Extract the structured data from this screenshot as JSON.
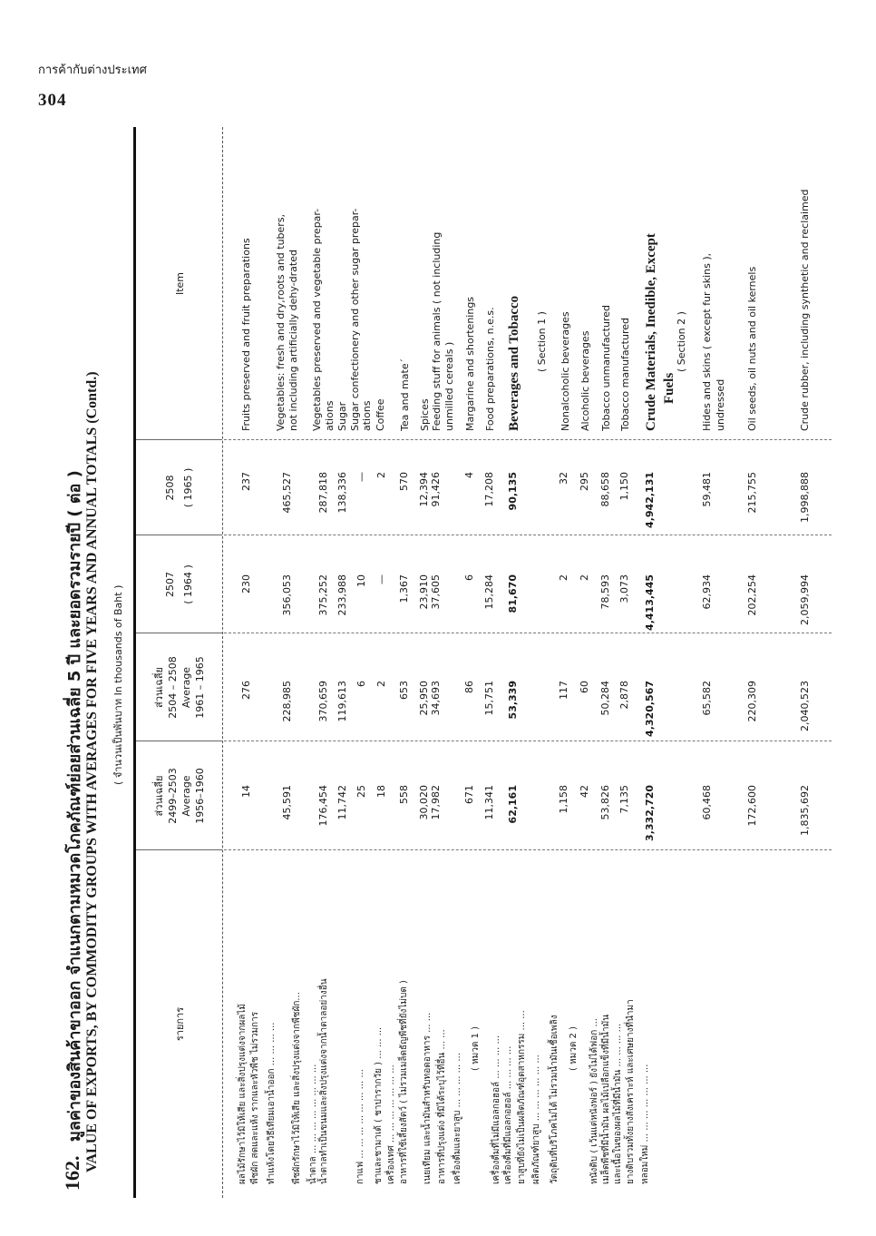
{
  "running_head": "การค้ากับต่างประเทศ",
  "page_number": "304",
  "table": {
    "number": "162.",
    "title_thai": "มูลค่าของสินค้าขาออก  จำแนกตามหมวดโภคภัณฑ์ย่อยส่วนเฉลี่ย 5 ปี  และยอดรวมรายปี  ( ต่อ )",
    "title_english": "VALUE OF EXPORTS, BY COMMODITY GROUPS WITH AVERAGES FOR FIVE YEARS AND ANNUAL TOTALS (Contd.)",
    "unit": "( จำนวนเป็นพันบาท   In thousands of Baht )",
    "headers": {
      "item_thai": "รายการ",
      "col1": [
        "ส่วนเฉลี่ย",
        "2499–2503",
        "Average",
        "1956–1960"
      ],
      "col2": [
        "ส่วนเฉลี่ย",
        "2504 – 2508",
        "Average",
        "1961 – 1965"
      ],
      "col3": [
        "2507",
        "( 1964 )"
      ],
      "col4": [
        "2508",
        "( 1965 )"
      ],
      "item_english": "Item"
    },
    "rows": [
      {
        "thai": [
          "ผลไม้รักษาไว้มิให้เสีย  และสิ่งปรุงแต่งจากผลไม้"
        ],
        "item": [
          "Fruits preserved and fruit preparations"
        ],
        "values": [
          "14",
          "276",
          "230",
          "237"
        ]
      },
      {
        "thai": [
          "พืชผัก  สดและแห้ง  รากและหัวพืช  ไม่รวมการ",
          "ทำแห้งโดยวิธีเทียมเอาน้ำออก ...  ...  ...  ..."
        ],
        "item": [
          "Vegetables: fresh and dry,roots and tubers,",
          "not including artificially dehy-drated"
        ],
        "values": [
          "45,591",
          "228,985",
          "356,053",
          "465,527"
        ]
      },
      {
        "thai": [
          "พืชผักรักษาไว้มิให้เสีย  และสิ่งปรุงแต่งจากพืชผัก..."
        ],
        "item": [
          "Vegetables preserved and vegetable prepar-",
          "ations"
        ],
        "values": [
          "176,454",
          "370,659",
          "375,252",
          "287,818"
        ]
      },
      {
        "thai": [
          "น้ำตาล ...  ...  ...  ...  ...  ...  ...  ..."
        ],
        "item": [
          "Sugar"
        ],
        "values": [
          "11,742",
          "119,613",
          "233,988",
          "138,336"
        ]
      },
      {
        "thai": [
          "น้ำตาลทำเป็นขนมและสิ่งปรุงแต่งจากน้ำตาลอย่างอื่น"
        ],
        "item": [
          "Sugar confectionery and other sugar prepar-",
          "ations"
        ],
        "values": [
          "25",
          "6",
          "10",
          "—"
        ]
      },
      {
        "thai": [
          "กาแฟ  ...  ...  ...  ...  ...  ...  ...  ..."
        ],
        "item": [
          "Coffee"
        ],
        "values": [
          "18",
          "2",
          "—",
          "2"
        ]
      },
      {
        "thai": [
          "ชาและชามาเต้  ( ชาปารากวัย )  ...  ...  ..."
        ],
        "item": [
          "Tea  and  mate´"
        ],
        "values": [
          "558",
          "653",
          "1,367",
          "570"
        ]
      },
      {
        "thai": [
          "เครื่องเทศ ...  ...  ...  ...  ...  ...  ..."
        ],
        "item": [
          "Spices"
        ],
        "values": [
          "30,020",
          "25,950",
          "23,910",
          "12,394"
        ]
      },
      {
        "thai": [
          "อาหารที่ใช้เลี้ยงสัตว์  ( ไม่รวมเมล็ดธัญพืชที่ยังไม่บด )"
        ],
        "item": [
          "Feeding   stuff   for   animals   ( not including",
          "unmilled cereals )"
        ],
        "values": [
          "17,982",
          "34,693",
          "37,605",
          "91,426"
        ]
      },
      {
        "thai": [
          "เนยเทียม  และน้ำมันสำหรับทอดอาหาร ...  ..."
        ],
        "item": [
          "Margarine and shortenings"
        ],
        "values": [
          "671",
          "86",
          "6",
          "4"
        ]
      },
      {
        "thai": [
          "อาหารที่ปรุงแต่ง   ที่มิได้ระบุไว้ที่อื่น  ...  ..."
        ],
        "item": [
          "Food preparations, n.e.s."
        ],
        "values": [
          "11,341",
          "15,751",
          "15,284",
          "17,208"
        ]
      },
      {
        "thai": [
          "เครื่องดื่มและยาสูบ  ...  ...  ...  ...  ..."
        ],
        "item": [
          "Beverages  and  Tobacco"
        ],
        "values": [
          "62,161",
          "53,339",
          "81,670",
          "90,135"
        ],
        "bold": true
      },
      {
        "thai": [
          "( หมวด 1 )"
        ],
        "item": [
          "( Section 1 )"
        ],
        "values": [],
        "indent": true
      },
      {
        "thai": [
          "เครื่องดื่มที่ไม่มีแอลกอฮอล์  ...  ...  ...  ..."
        ],
        "item": [
          "Nonalcoholic beverages"
        ],
        "values": [
          "1,158",
          "117",
          "2",
          "32"
        ]
      },
      {
        "thai": [
          "เครื่องดื่มที่มีแอลกอฮอล์  ...  ...  ...  ..."
        ],
        "item": [
          "Alcoholic beverages"
        ],
        "values": [
          "42",
          "60",
          "2",
          "295"
        ]
      },
      {
        "thai": [
          "ยาสูบที่ยังไม่เป็นผลิตภัณฑ์อุตสาหกรรม  ...  ..."
        ],
        "item": [
          "Tobacco unmanufactured"
        ],
        "values": [
          "53,826",
          "50,284",
          "78,593",
          "88,658"
        ]
      },
      {
        "thai": [
          "ผลิตภัณฑ์ยาสูบ  ...  ...  ...  ...  ...  ..."
        ],
        "item": [
          "Tobacco manufactured"
        ],
        "values": [
          "7,135",
          "2,878",
          "3,073",
          "1,150"
        ]
      },
      {
        "thai": [
          "วัตถุดิบที่บริโภคไม่ได้  ไม่รวมน้ำมันเชื้อเพลิง"
        ],
        "item": [
          "Crude  Materials,  Inedible,  Except",
          "Fuels"
        ],
        "values": [
          "3,332,720",
          "4,320,567",
          "4,413,445",
          "4,942,131"
        ],
        "bold": true
      },
      {
        "thai": [
          "( หมวด 2 )"
        ],
        "item": [
          "( Section 2 )"
        ],
        "values": [],
        "indent": true
      },
      {
        "thai": [
          "หนังดิบ  ( เว้นแต่หนังฟอร์ )   ยังไม่ได้ฟอก  ..."
        ],
        "item": [
          "Hides  and  skins  ( except  fur  skins ),",
          "undressed"
        ],
        "values": [
          "60,468",
          "65,582",
          "62,934",
          "59,481"
        ]
      },
      {
        "thai": [
          "เมล็ดพืชที่มีน้ำมัน    ผลไม้เปลือกแข็งที่มีน้ำมัน",
          "และเนื้อในของผลไม้ที่มีน้ำมัน  ...  ...  ...  ..."
        ],
        "item": [
          "Oil  seeds,  oil  nuts  and  oil  kernels"
        ],
        "values": [
          "172,600",
          "220,309",
          "202,254",
          "215,755"
        ]
      },
      {
        "thai": [
          "ยางดิบรวมทั้งยางสังเคราะห์   และเศษยางที่นำมา",
          "หลอมใหม่  ...  ...  ...  ...  ...  ...  ..."
        ],
        "item": [
          "Crude rubber, including synthetic and reclaimed"
        ],
        "values": [
          "1,835,692",
          "2,040,523",
          "2,059,994",
          "1,998,888"
        ]
      }
    ]
  }
}
